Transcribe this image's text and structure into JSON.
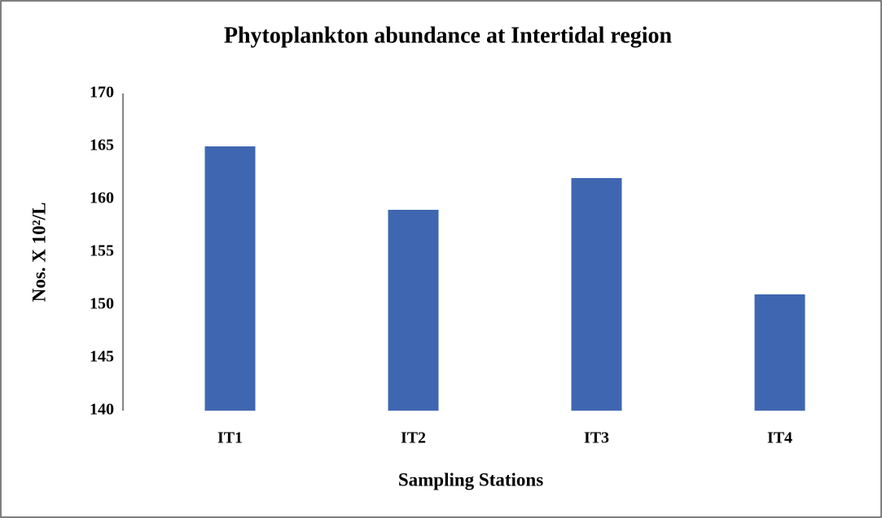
{
  "chart_data": {
    "type": "bar",
    "title": "Phytoplankton  abundance at Intertidal  region",
    "x_label": "Sampling Stations",
    "y_label": "Nos. X 10²/L",
    "categories": [
      "IT1",
      "IT2",
      "IT3",
      "IT4"
    ],
    "values": [
      165,
      159,
      162,
      151
    ],
    "color": "#3f67b1",
    "ylim": [
      140,
      170
    ],
    "yticks": [
      140,
      145,
      150,
      155,
      160,
      165,
      170
    ],
    "grid": false
  }
}
